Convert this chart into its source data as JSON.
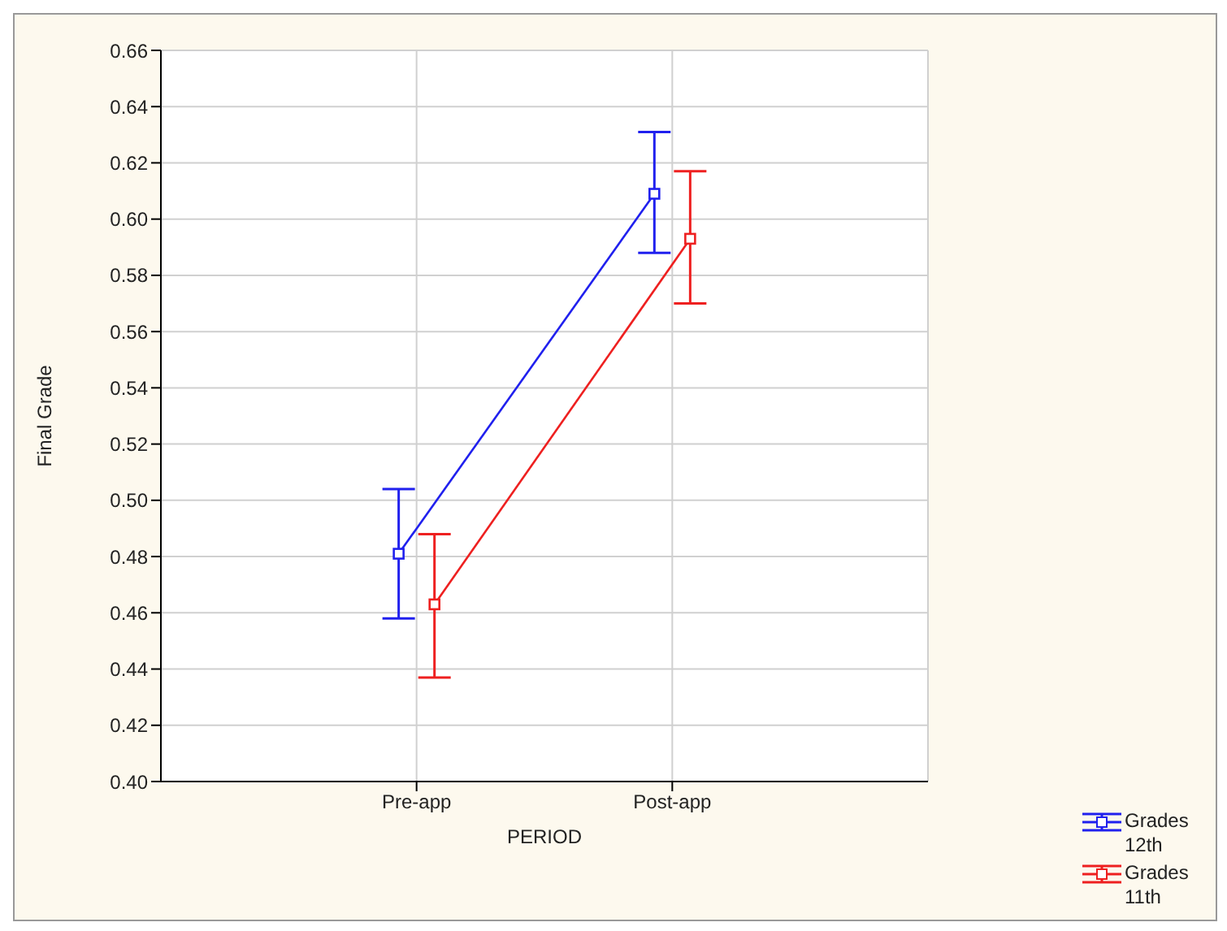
{
  "chart_data": {
    "type": "line",
    "xlabel": "PERIOD",
    "ylabel": "Final Grade",
    "categories": [
      "Pre-app",
      "Post-app"
    ],
    "series": [
      {
        "name": "Grades 12th",
        "color": "#2020ee",
        "values": [
          0.481,
          0.609
        ],
        "errors": [
          [
            0.458,
            0.504
          ],
          [
            0.588,
            0.631
          ]
        ]
      },
      {
        "name": "Grades 11th",
        "color": "#ee2020",
        "values": [
          0.463,
          0.593
        ],
        "errors": [
          [
            0.437,
            0.488
          ],
          [
            0.57,
            0.617
          ]
        ]
      }
    ],
    "ylim": [
      0.4,
      0.66
    ],
    "yticks": [
      {
        "value": 0.4,
        "label": "0.40"
      },
      {
        "value": 0.42,
        "label": "0.42"
      },
      {
        "value": 0.44,
        "label": "0.44"
      },
      {
        "value": 0.46,
        "label": "0.46"
      },
      {
        "value": 0.48,
        "label": "0.48"
      },
      {
        "value": 0.5,
        "label": "0.50"
      },
      {
        "value": 0.52,
        "label": "0.52"
      },
      {
        "value": 0.54,
        "label": "0.54"
      },
      {
        "value": 0.56,
        "label": "0.56"
      },
      {
        "value": 0.58,
        "label": "0.58"
      },
      {
        "value": 0.6,
        "label": "0.60"
      },
      {
        "value": 0.62,
        "label": "0.62"
      },
      {
        "value": 0.64,
        "label": "0.64"
      },
      {
        "value": 0.66,
        "label": "0.66"
      }
    ],
    "grid": true,
    "legend": "bottom right",
    "marker": "square",
    "line_style": "solid"
  }
}
